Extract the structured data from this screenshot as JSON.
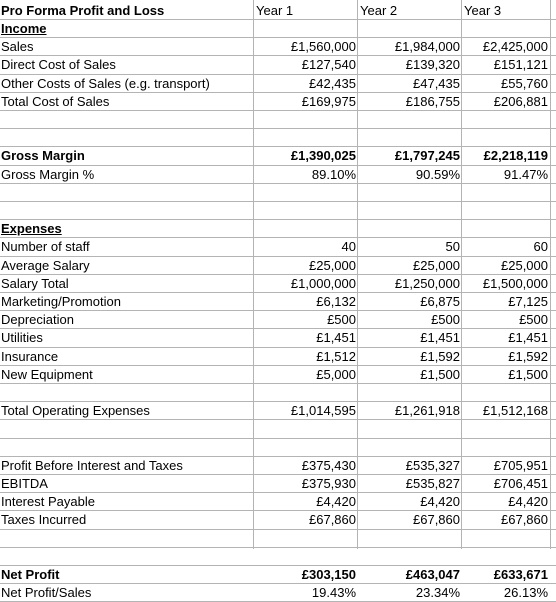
{
  "title": "Pro Forma Profit and Loss",
  "years": [
    "Year 1",
    "Year 2",
    "Year 3"
  ],
  "rows": [
    {
      "label": "Income",
      "values": [
        "",
        "",
        ""
      ],
      "style": "section"
    },
    {
      "label": "Sales",
      "values": [
        "£1,560,000",
        "£1,984,000",
        "£2,425,000"
      ],
      "style": ""
    },
    {
      "label": "Direct Cost of Sales",
      "values": [
        "£127,540",
        "£139,320",
        "£151,121"
      ],
      "style": ""
    },
    {
      "label": "Other Costs of Sales (e.g. transport)",
      "values": [
        "£42,435",
        "£47,435",
        "£55,760"
      ],
      "style": ""
    },
    {
      "label": "Total Cost of Sales",
      "values": [
        "£169,975",
        "£186,755",
        "£206,881"
      ],
      "style": ""
    },
    {
      "label": "",
      "values": [
        "",
        "",
        ""
      ],
      "style": "blank"
    },
    {
      "label": "",
      "values": [
        "",
        "",
        ""
      ],
      "style": "blank"
    },
    {
      "label": "Gross Margin",
      "values": [
        "£1,390,025",
        "£1,797,245",
        "£2,218,119"
      ],
      "style": "bold"
    },
    {
      "label": "Gross Margin %",
      "values": [
        "89.10%",
        "90.59%",
        "91.47%"
      ],
      "style": ""
    },
    {
      "label": "",
      "values": [
        "",
        "",
        ""
      ],
      "style": "blank"
    },
    {
      "label": "",
      "values": [
        "",
        "",
        ""
      ],
      "style": "blank"
    },
    {
      "label": "Expenses",
      "values": [
        "",
        "",
        ""
      ],
      "style": "section"
    },
    {
      "label": "Number of staff",
      "values": [
        "40",
        "50",
        "60"
      ],
      "style": ""
    },
    {
      "label": "Average Salary",
      "values": [
        "£25,000",
        "£25,000",
        "£25,000"
      ],
      "style": ""
    },
    {
      "label": "Salary Total",
      "values": [
        "£1,000,000",
        "£1,250,000",
        "£1,500,000"
      ],
      "style": ""
    },
    {
      "label": "Marketing/Promotion",
      "values": [
        "£6,132",
        "£6,875",
        "£7,125"
      ],
      "style": ""
    },
    {
      "label": "Depreciation",
      "values": [
        "£500",
        "£500",
        "£500"
      ],
      "style": ""
    },
    {
      "label": "Utilities",
      "values": [
        "£1,451",
        "£1,451",
        "£1,451"
      ],
      "style": ""
    },
    {
      "label": "Insurance",
      "values": [
        "£1,512",
        "£1,592",
        "£1,592"
      ],
      "style": ""
    },
    {
      "label": "New Equipment",
      "values": [
        "£5,000",
        "£1,500",
        "£1,500"
      ],
      "style": ""
    },
    {
      "label": "",
      "values": [
        "",
        "",
        ""
      ],
      "style": "blank"
    },
    {
      "label": "Total Operating Expenses",
      "values": [
        "£1,014,595",
        "£1,261,918",
        "£1,512,168"
      ],
      "style": ""
    },
    {
      "label": "",
      "values": [
        "",
        "",
        ""
      ],
      "style": "blank"
    },
    {
      "label": "",
      "values": [
        "",
        "",
        ""
      ],
      "style": "blank"
    },
    {
      "label": "Profit Before Interest and Taxes",
      "values": [
        "£375,430",
        "£535,327",
        "£705,951"
      ],
      "style": ""
    },
    {
      "label": "EBITDA",
      "values": [
        "£375,930",
        "£535,827",
        "£706,451"
      ],
      "style": ""
    },
    {
      "label": "Interest Payable",
      "values": [
        "£4,420",
        "£4,420",
        "£4,420"
      ],
      "style": ""
    },
    {
      "label": "Taxes Incurred",
      "values": [
        "£67,860",
        "£67,860",
        "£67,860"
      ],
      "style": ""
    },
    {
      "label": "",
      "values": [
        "",
        "",
        ""
      ],
      "style": "blank"
    },
    {
      "label": "",
      "values": [
        "",
        "",
        ""
      ],
      "style": "blank"
    },
    {
      "label": "Net Profit",
      "values": [
        "£303,150",
        "£463,047",
        "£633,671"
      ],
      "style": "bold"
    },
    {
      "label": "Net Profit/Sales",
      "values": [
        "19.43%",
        "23.34%",
        "26.13%"
      ],
      "style": ""
    }
  ]
}
